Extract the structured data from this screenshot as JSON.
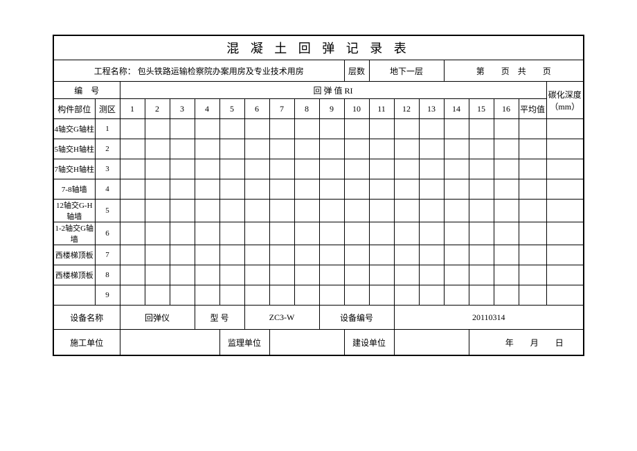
{
  "title": "混 凝 土 回 弹 记 录 表",
  "header": {
    "project_label": "工程名称：",
    "project_name": "包头铁路运输检察院办案用房及专业技术用房",
    "floor_label": "层数",
    "floor_value": "地下一层",
    "page_di": "第",
    "page_ye": "页",
    "page_gong": "共",
    "page_ye2": "页"
  },
  "subheader": {
    "serial_label": "编　号",
    "rebound_label": "回 弹 值 RI",
    "carbon_label": "碳化深度（mm）"
  },
  "cols": {
    "part": "构件部位",
    "zone": "测区",
    "n": [
      "1",
      "2",
      "3",
      "4",
      "5",
      "6",
      "7",
      "8",
      "9",
      "10",
      "11",
      "12",
      "13",
      "14",
      "15",
      "16"
    ],
    "avg": "平均值"
  },
  "rows": [
    {
      "part": "4轴交G轴柱",
      "zone": "1"
    },
    {
      "part": "5轴交H轴柱",
      "zone": "2"
    },
    {
      "part": "7轴交H轴柱",
      "zone": "3"
    },
    {
      "part": "7-8轴墙",
      "zone": "4"
    },
    {
      "part": "12轴交G-H轴墙",
      "zone": "5"
    },
    {
      "part": "1-2轴交G轴墙",
      "zone": "6"
    },
    {
      "part": "西楼梯顶板",
      "zone": "7"
    },
    {
      "part": "西楼梯顶板",
      "zone": "8"
    },
    {
      "part": "",
      "zone": "9"
    }
  ],
  "equipment": {
    "name_label": "设备名称",
    "name_value": "回弹仪",
    "model_label": "型 号",
    "model_value": "ZC3-W",
    "serial_label": "设备编号",
    "serial_value": "20110314"
  },
  "footer": {
    "cons_label": "施工单位",
    "super_label": "监理单位",
    "build_label": "建设单位",
    "year": "年",
    "month": "月",
    "day": "日"
  },
  "layout": {
    "col_part_w": 60,
    "col_zone_w": 36,
    "col_num_w": 36,
    "col_avg_w": 40,
    "col_carbon_w": 54
  }
}
